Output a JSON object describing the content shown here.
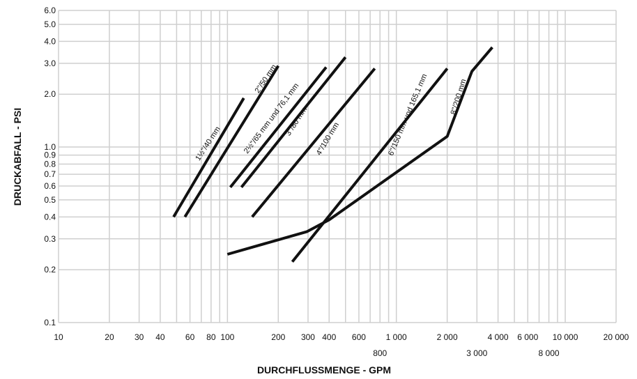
{
  "chart_data": {
    "type": "line",
    "title": "",
    "xlabel": "DURCHFLUSSMENGE - GPM",
    "ylabel": "DRUCKABFALL - PSI",
    "xscale": "log",
    "yscale": "log",
    "xlim": [
      10,
      20000
    ],
    "ylim": [
      0.1,
      6.0
    ],
    "grid": true,
    "x_ticks": [
      {
        "value": 10,
        "label": "10"
      },
      {
        "value": 20,
        "label": "20"
      },
      {
        "value": 30,
        "label": "30"
      },
      {
        "value": 40,
        "label": "40"
      },
      {
        "value": 60,
        "label": "60"
      },
      {
        "value": 80,
        "label": "80"
      },
      {
        "value": 100,
        "label": "100"
      },
      {
        "value": 200,
        "label": "200"
      },
      {
        "value": 300,
        "label": "300"
      },
      {
        "value": 400,
        "label": "400"
      },
      {
        "value": 600,
        "label": "600"
      },
      {
        "value": 800,
        "label": "800",
        "row": 2
      },
      {
        "value": 1000,
        "label": "1 000"
      },
      {
        "value": 2000,
        "label": "2 000"
      },
      {
        "value": 3000,
        "label": "3 000",
        "row": 2
      },
      {
        "value": 4000,
        "label": "4 000"
      },
      {
        "value": 6000,
        "label": "6 000"
      },
      {
        "value": 8000,
        "label": "8 000",
        "row": 2
      },
      {
        "value": 10000,
        "label": "10 000"
      },
      {
        "value": 20000,
        "label": "20 000"
      }
    ],
    "x_gridlines": [
      10,
      20,
      30,
      40,
      50,
      60,
      70,
      80,
      90,
      100,
      200,
      300,
      400,
      500,
      600,
      700,
      800,
      900,
      1000,
      2000,
      3000,
      4000,
      5000,
      6000,
      7000,
      8000,
      9000,
      10000,
      20000
    ],
    "y_ticks": [
      {
        "value": 0.1,
        "label": "0.1"
      },
      {
        "value": 0.2,
        "label": "0.2"
      },
      {
        "value": 0.3,
        "label": "0.3"
      },
      {
        "value": 0.4,
        "label": "0.4"
      },
      {
        "value": 0.5,
        "label": "0.5"
      },
      {
        "value": 0.6,
        "label": "0.6"
      },
      {
        "value": 0.7,
        "label": "0.7"
      },
      {
        "value": 0.8,
        "label": "0.8"
      },
      {
        "value": 0.9,
        "label": "0.9"
      },
      {
        "value": 1.0,
        "label": "1.0"
      },
      {
        "value": 2.0,
        "label": "2.0"
      },
      {
        "value": 3.0,
        "label": "3.0"
      },
      {
        "value": 4.0,
        "label": "4.0"
      },
      {
        "value": 5.0,
        "label": "5.0"
      },
      {
        "value": 6.0,
        "label": "6.0"
      }
    ],
    "series": [
      {
        "name": "1½\"/40 mm",
        "points": [
          [
            48,
            0.4
          ],
          [
            125,
            1.9
          ]
        ]
      },
      {
        "name": "2\"/50 mm",
        "points": [
          [
            56,
            0.4
          ],
          [
            200,
            2.9
          ]
        ]
      },
      {
        "name": "2½\"/65 mm und 76,1 mm",
        "points": [
          [
            104,
            0.59
          ],
          [
            384,
            2.85
          ]
        ]
      },
      {
        "name": "3\"/80 mm",
        "points": [
          [
            121,
            0.59
          ],
          [
            500,
            3.25
          ]
        ]
      },
      {
        "name": "4\"/100 mm",
        "points": [
          [
            140,
            0.4
          ],
          [
            745,
            2.8
          ]
        ]
      },
      {
        "name": "6\"/150 mm und 165,1 mm",
        "points": [
          [
            242,
            0.222
          ],
          [
            2000,
            2.8
          ]
        ]
      },
      {
        "name": "8\"/200 mm",
        "points": [
          [
            100,
            0.245
          ],
          [
            296,
            0.33
          ],
          [
            400,
            0.385
          ],
          [
            2000,
            1.15
          ],
          [
            2800,
            2.7
          ],
          [
            3700,
            3.7
          ]
        ]
      }
    ],
    "labels": [
      {
        "text": "1½\"/40 mm",
        "series": 0
      },
      {
        "text": "2\"/50 mm",
        "series": 1
      },
      {
        "text": "2½\"/65 mm und 76,1 mm",
        "series": 2
      },
      {
        "text": "3\"/80 mm",
        "series": 3
      },
      {
        "text": "4\"/100 mm",
        "series": 4
      },
      {
        "text": "6\"/150 mm und 165,1 mm",
        "series": 5
      },
      {
        "text": "8\"/200 mm",
        "series": 6
      }
    ]
  }
}
